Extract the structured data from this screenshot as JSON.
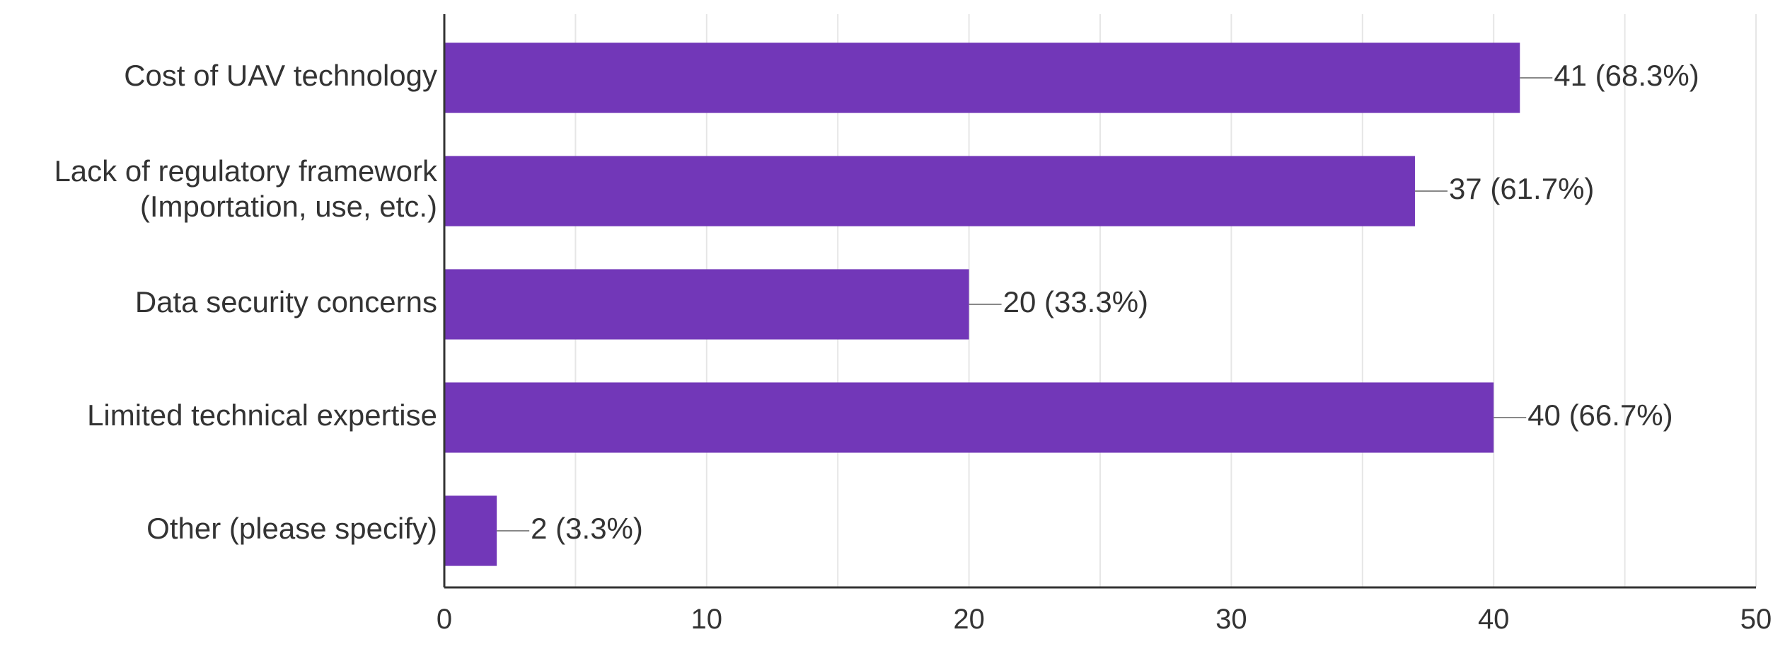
{
  "chart_data": {
    "type": "bar",
    "orientation": "horizontal",
    "categories": [
      [
        "Cost of UAV technology"
      ],
      [
        "Lack of regulatory framework",
        "(Importation, use, etc.)"
      ],
      [
        "Data security concerns"
      ],
      [
        "Limited technical expertise"
      ],
      [
        "Other (please specify)"
      ]
    ],
    "values": [
      41,
      37,
      20,
      40,
      2
    ],
    "data_labels": [
      "41 (68.3%)",
      "37 (61.7%)",
      "20 (33.3%)",
      "40 (66.7%)",
      "2 (3.3%)"
    ],
    "xlim": [
      0,
      50
    ],
    "x_ticks": [
      0,
      10,
      20,
      30,
      40,
      50
    ],
    "grid": true,
    "colors": {
      "bar": "#7237B8",
      "grid": "#E6E6E6",
      "axis": "#333333",
      "connector": "#888888"
    }
  }
}
